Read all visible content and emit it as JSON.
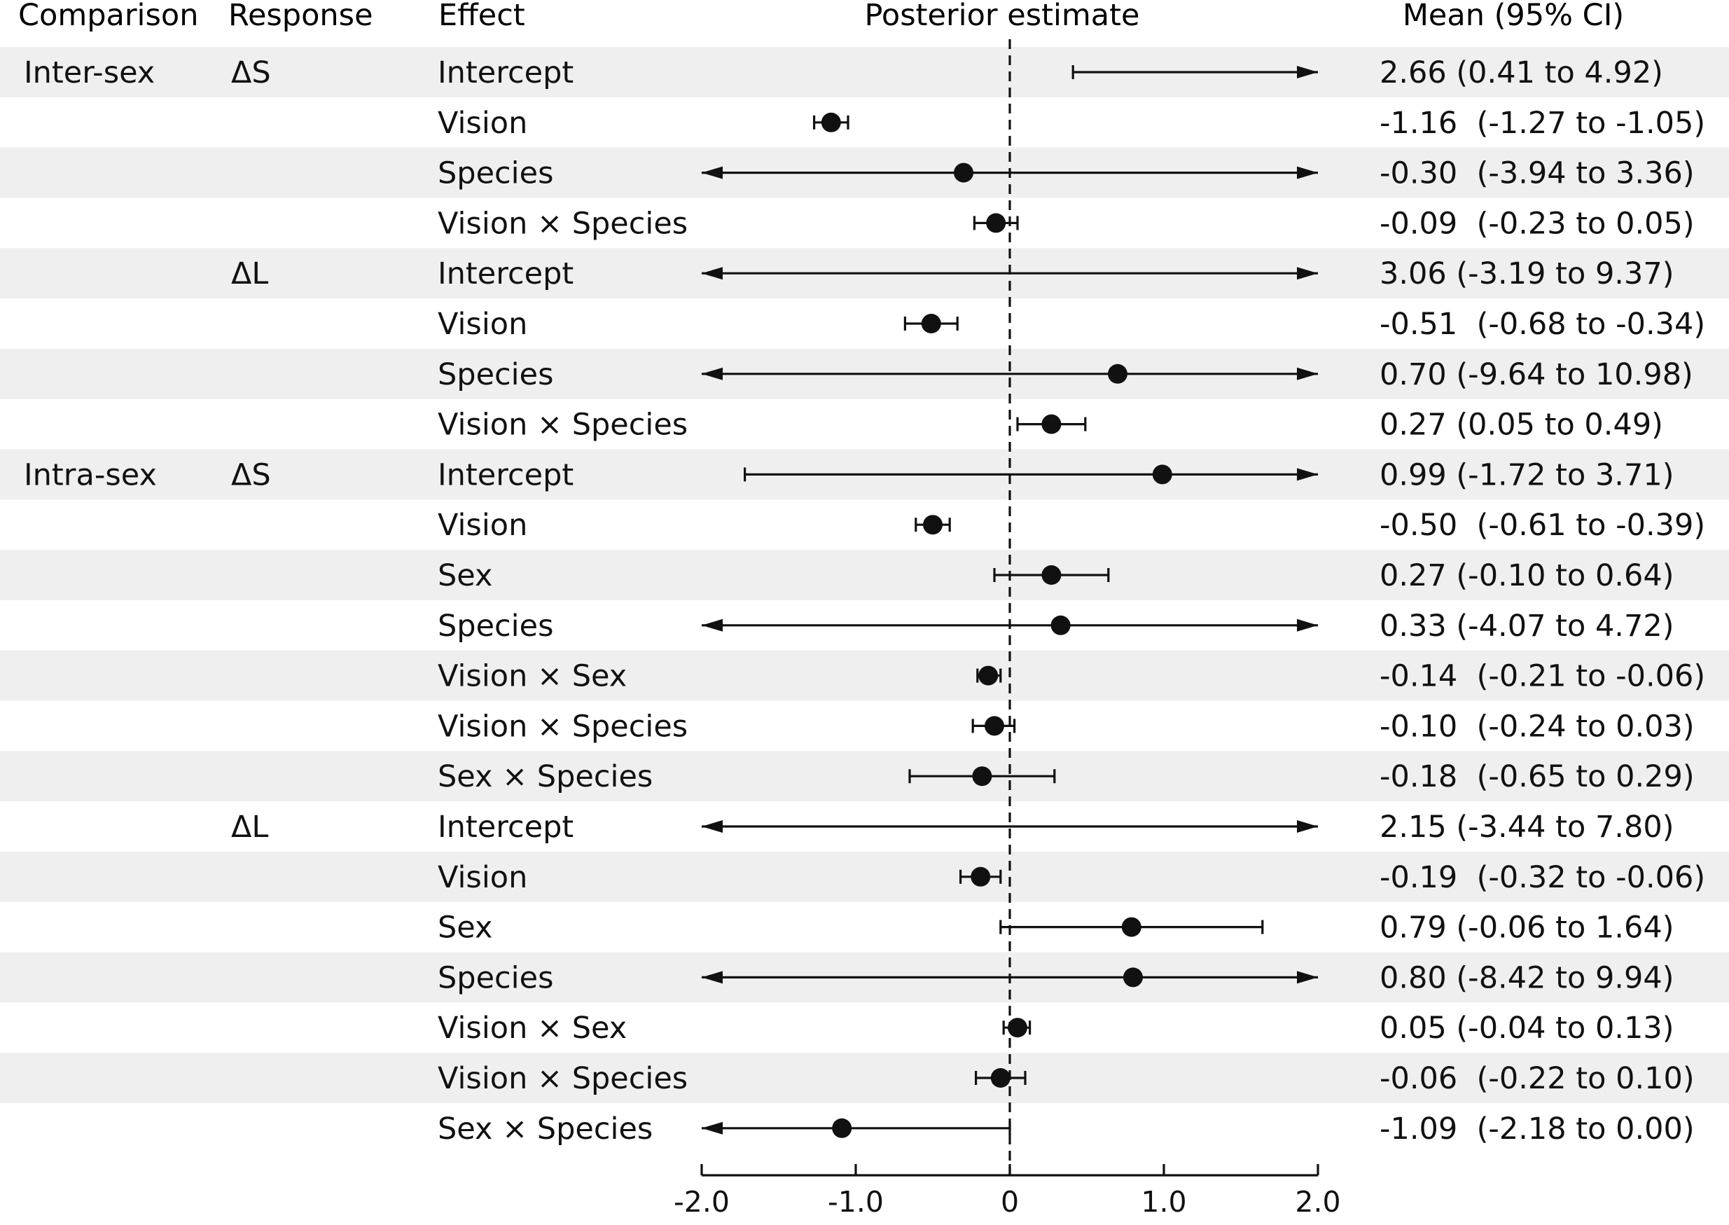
{
  "headers": {
    "comparison": "Comparison",
    "response": "Response",
    "effect": "Effect",
    "estimate": "Posterior estimate",
    "mean_ci": "Mean (95% CI)"
  },
  "chart_data": {
    "type": "forest",
    "title": "",
    "xlabel": "",
    "xlim": [
      -2.0,
      2.0
    ],
    "xticks": [
      -2.0,
      -1.0,
      0,
      1.0,
      2.0
    ],
    "xtick_labels": [
      "-2.0",
      "-1.0",
      "0",
      "1.0",
      "2.0"
    ],
    "reference_line": 0,
    "rows": [
      {
        "comparison": "Inter-sex",
        "response": "ΔS",
        "effect": "Intercept",
        "mean": 2.66,
        "lo": 0.41,
        "hi": 4.92,
        "ci_text": "2.66 (0.41 to 4.92)"
      },
      {
        "comparison": "",
        "response": "",
        "effect": "Vision",
        "mean": -1.16,
        "lo": -1.27,
        "hi": -1.05,
        "ci_text": "-1.16  (-1.27 to -1.05)"
      },
      {
        "comparison": "",
        "response": "",
        "effect": "Species",
        "mean": -0.3,
        "lo": -3.94,
        "hi": 3.36,
        "ci_text": "-0.30  (-3.94 to 3.36)"
      },
      {
        "comparison": "",
        "response": "",
        "effect": "Vision × Species",
        "mean": -0.09,
        "lo": -0.23,
        "hi": 0.05,
        "ci_text": "-0.09  (-0.23 to 0.05)"
      },
      {
        "comparison": "",
        "response": "ΔL",
        "effect": "Intercept",
        "mean": 3.06,
        "lo": -3.19,
        "hi": 9.37,
        "ci_text": "3.06 (-3.19 to 9.37)"
      },
      {
        "comparison": "",
        "response": "",
        "effect": "Vision",
        "mean": -0.51,
        "lo": -0.68,
        "hi": -0.34,
        "ci_text": "-0.51  (-0.68 to -0.34)"
      },
      {
        "comparison": "",
        "response": "",
        "effect": "Species",
        "mean": 0.7,
        "lo": -9.64,
        "hi": 10.98,
        "ci_text": "0.70 (-9.64 to 10.98)"
      },
      {
        "comparison": "",
        "response": "",
        "effect": "Vision × Species",
        "mean": 0.27,
        "lo": 0.05,
        "hi": 0.49,
        "ci_text": "0.27 (0.05 to 0.49)"
      },
      {
        "comparison": "Intra-sex",
        "response": "ΔS",
        "effect": "Intercept",
        "mean": 0.99,
        "lo": -1.72,
        "hi": 3.71,
        "ci_text": "0.99 (-1.72 to 3.71)"
      },
      {
        "comparison": "",
        "response": "",
        "effect": "Vision",
        "mean": -0.5,
        "lo": -0.61,
        "hi": -0.39,
        "ci_text": "-0.50  (-0.61 to -0.39)"
      },
      {
        "comparison": "",
        "response": "",
        "effect": "Sex",
        "mean": 0.27,
        "lo": -0.1,
        "hi": 0.64,
        "ci_text": "0.27 (-0.10 to 0.64)"
      },
      {
        "comparison": "",
        "response": "",
        "effect": "Species",
        "mean": 0.33,
        "lo": -4.07,
        "hi": 4.72,
        "ci_text": "0.33 (-4.07 to 4.72)"
      },
      {
        "comparison": "",
        "response": "",
        "effect": "Vision × Sex",
        "mean": -0.14,
        "lo": -0.21,
        "hi": -0.06,
        "ci_text": "-0.14  (-0.21 to -0.06)"
      },
      {
        "comparison": "",
        "response": "",
        "effect": "Vision × Species",
        "mean": -0.1,
        "lo": -0.24,
        "hi": 0.03,
        "ci_text": "-0.10  (-0.24 to 0.03)"
      },
      {
        "comparison": "",
        "response": "",
        "effect": "Sex × Species",
        "mean": -0.18,
        "lo": -0.65,
        "hi": 0.29,
        "ci_text": "-0.18  (-0.65 to 0.29)"
      },
      {
        "comparison": "",
        "response": "ΔL",
        "effect": "Intercept",
        "mean": 2.15,
        "lo": -3.44,
        "hi": 7.8,
        "ci_text": "2.15 (-3.44 to 7.80)"
      },
      {
        "comparison": "",
        "response": "",
        "effect": "Vision",
        "mean": -0.19,
        "lo": -0.32,
        "hi": -0.06,
        "ci_text": "-0.19  (-0.32 to -0.06)"
      },
      {
        "comparison": "",
        "response": "",
        "effect": "Sex",
        "mean": 0.79,
        "lo": -0.06,
        "hi": 1.64,
        "ci_text": "0.79 (-0.06 to 1.64)"
      },
      {
        "comparison": "",
        "response": "",
        "effect": "Species",
        "mean": 0.8,
        "lo": -8.42,
        "hi": 9.94,
        "ci_text": "0.80 (-8.42 to 9.94)"
      },
      {
        "comparison": "",
        "response": "",
        "effect": "Vision × Sex",
        "mean": 0.05,
        "lo": -0.04,
        "hi": 0.13,
        "ci_text": "0.05 (-0.04 to 0.13)"
      },
      {
        "comparison": "",
        "response": "",
        "effect": "Vision × Species",
        "mean": -0.06,
        "lo": -0.22,
        "hi": 0.1,
        "ci_text": "-0.06  (-0.22 to 0.10)"
      },
      {
        "comparison": "",
        "response": "",
        "effect": "Sex × Species",
        "mean": -1.09,
        "lo": -2.18,
        "hi": 0.0,
        "ci_text": "-1.09  (-2.18 to 0.00)"
      }
    ]
  },
  "colors": {
    "band": "#efefef",
    "ink": "#111111"
  }
}
